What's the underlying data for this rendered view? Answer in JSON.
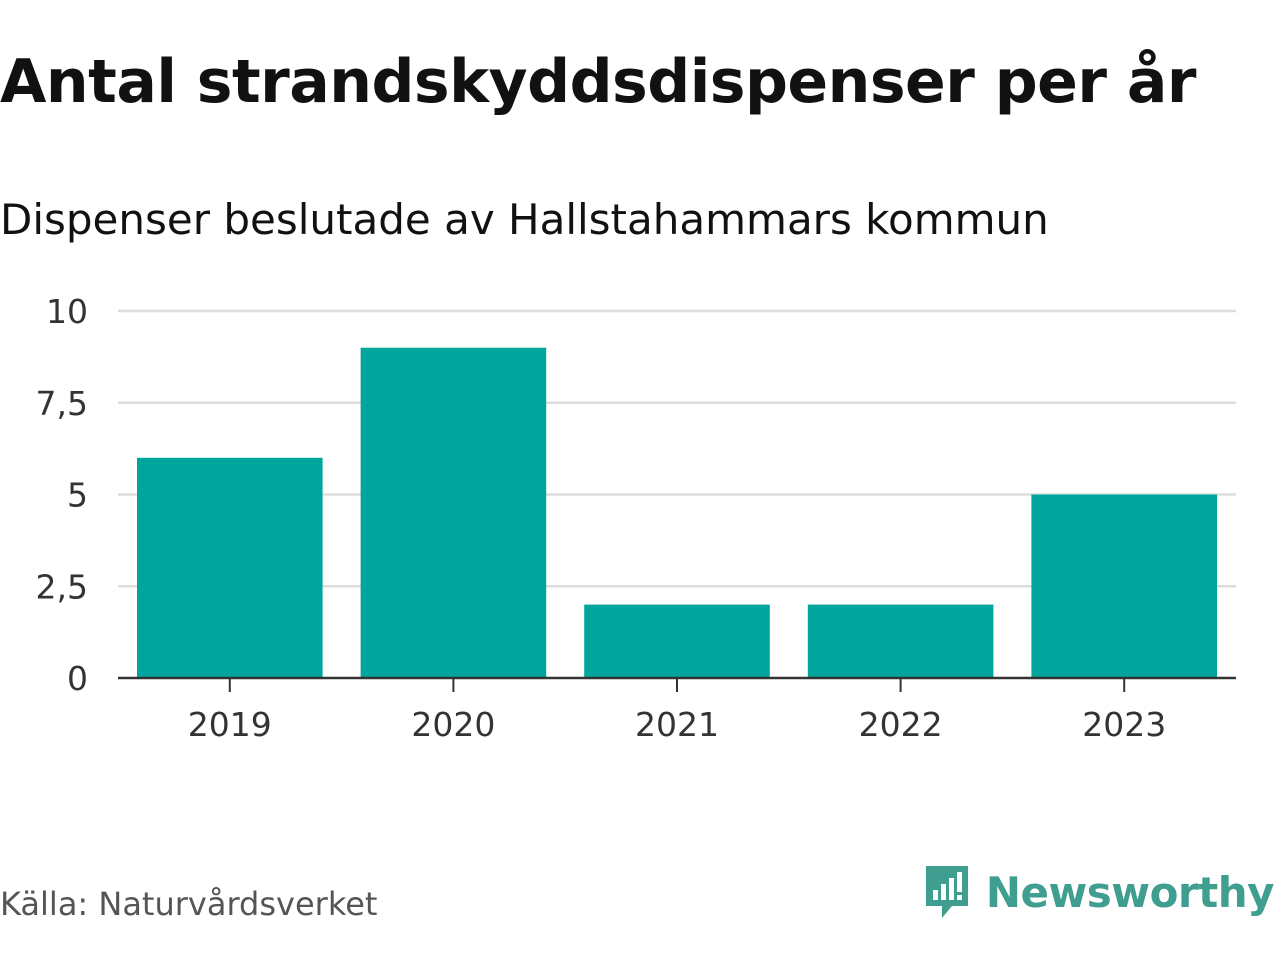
{
  "title": "Antal strandskyddsdispenser per år",
  "subtitle": "Dispenser beslutade av Hallstahammars kommun",
  "source": "Källa: Naturvårdsverket",
  "brand": {
    "name": "Newsworthy",
    "icon": "newsworthy-logo-icon",
    "color": "#3f9e8f"
  },
  "colors": {
    "bar": "#00a69b",
    "grid": "#dddddd",
    "axis": "#333333"
  },
  "chart_data": {
    "type": "bar",
    "title": "Antal strandskyddsdispenser per år",
    "subtitle": "Dispenser beslutade av Hallstahammars kommun",
    "categories": [
      "2019",
      "2020",
      "2021",
      "2022",
      "2023"
    ],
    "values": [
      6,
      9,
      2,
      2,
      5
    ],
    "xlabel": "",
    "ylabel": "",
    "ylim": [
      0,
      10
    ],
    "yticks": [
      0,
      2.5,
      5,
      7.5,
      10
    ],
    "ytick_labels": [
      "0",
      "2,5",
      "5",
      "7,5",
      "10"
    ],
    "grid": true,
    "legend": "none"
  }
}
